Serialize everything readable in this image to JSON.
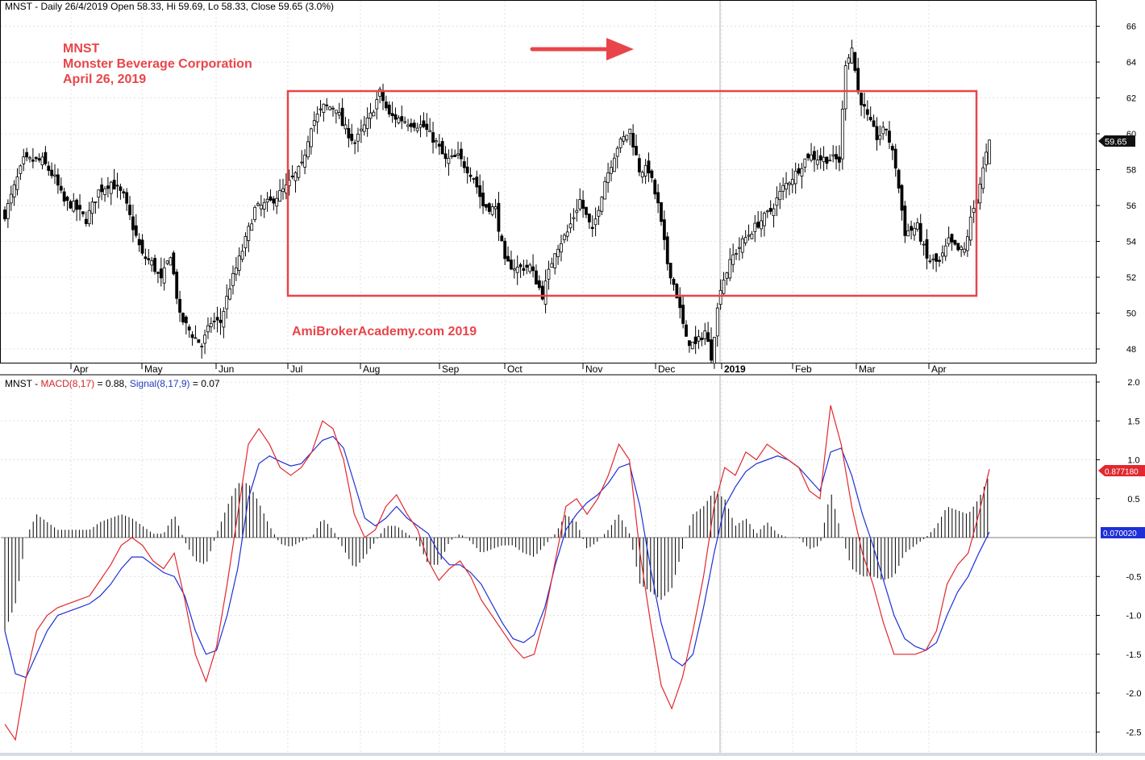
{
  "price_panel": {
    "header": "MNST - Daily 26/4/2019 Open 58.33, Hi 59.69, Lo 58.33, Close 59.65 (3.0%)",
    "annotation_lines": [
      "MNST",
      "Monster Beverage Corporation",
      "April 26, 2019"
    ],
    "watermark": "AmiBrokerAcademy.com  2019",
    "last_price_label": "59.65",
    "colors": {
      "annotation": "#e8454a",
      "box": "#e8454a",
      "arrow": "#e8454a",
      "candle": "#000000"
    }
  },
  "macd_panel": {
    "header": {
      "prefix": "MNST - ",
      "macd_label": "MACD(8,17)",
      "macd_value": " = 0.88, ",
      "signal_label": "Signal(8,17,9)",
      "signal_value": " = 0.07"
    },
    "macd_value_label": "0.877180",
    "signal_value_label": "0.070020",
    "colors": {
      "macd": "#e0282e",
      "signal": "#1f2fd6",
      "histogram": "#000000"
    }
  },
  "chart_data": [
    {
      "type": "candlestick",
      "title": "MNST - Daily 26/4/2019",
      "xlabel": "",
      "ylabel": "",
      "x_tick_labels": [
        "Apr",
        "May",
        "Jun",
        "Jul",
        "Aug",
        "Sep",
        "Oct",
        "Nov",
        "Dec",
        "2019",
        "Feb",
        "Mar",
        "Apr"
      ],
      "y_ticks": [
        48,
        50,
        52,
        54,
        56,
        58,
        60,
        62,
        64,
        66
      ],
      "ylim": [
        47,
        67
      ],
      "grid": true,
      "last": {
        "open": 58.33,
        "high": 59.69,
        "low": 58.33,
        "close": 59.65,
        "change_pct": 3.0
      },
      "close_anchors": [
        [
          0,
          55.5
        ],
        [
          3,
          57
        ],
        [
          6,
          58.5
        ],
        [
          12,
          58.5
        ],
        [
          16,
          57.5
        ],
        [
          19,
          56.2
        ],
        [
          22,
          56
        ],
        [
          26,
          55.2
        ],
        [
          30,
          56.8
        ],
        [
          34,
          57.3
        ],
        [
          38,
          56.5
        ],
        [
          41,
          54.8
        ],
        [
          44,
          53.2
        ],
        [
          47,
          52.8
        ],
        [
          50,
          51.8
        ],
        [
          53,
          53.3
        ],
        [
          56,
          49.8
        ],
        [
          60,
          48.8
        ],
        [
          63,
          48.2
        ],
        [
          66,
          49.5
        ],
        [
          69,
          49.5
        ],
        [
          72,
          51.5
        ],
        [
          76,
          53.5
        ],
        [
          80,
          55.8
        ],
        [
          85,
          56.2
        ],
        [
          90,
          57
        ],
        [
          95,
          58.2
        ],
        [
          98,
          60.5
        ],
        [
          102,
          61.5
        ],
        [
          106,
          61.5
        ],
        [
          108,
          60.5
        ],
        [
          112,
          59.5
        ],
        [
          117,
          61
        ],
        [
          120,
          62.3
        ],
        [
          123,
          61
        ],
        [
          127,
          60.8
        ],
        [
          130,
          60.6
        ],
        [
          134,
          60.4
        ],
        [
          138,
          59.5
        ],
        [
          141,
          58.5
        ],
        [
          145,
          58.7
        ],
        [
          150,
          57.6
        ],
        [
          153,
          56
        ],
        [
          157,
          55.8
        ],
        [
          160,
          52.8
        ],
        [
          164,
          52.5
        ],
        [
          168,
          52.6
        ],
        [
          172,
          51
        ],
        [
          176,
          53.5
        ],
        [
          180,
          54.5
        ],
        [
          184,
          56.3
        ],
        [
          188,
          54.5
        ],
        [
          192,
          57.4
        ],
        [
          196,
          59.3
        ],
        [
          200,
          60.2
        ],
        [
          203,
          58
        ],
        [
          206,
          58
        ],
        [
          209,
          56
        ],
        [
          212,
          52.8
        ],
        [
          215,
          51
        ],
        [
          218,
          48.5
        ],
        [
          221,
          48.2
        ],
        [
          224,
          49
        ],
        [
          226,
          47.6
        ],
        [
          229,
          51.5
        ],
        [
          233,
          53.2
        ],
        [
          237,
          54.2
        ],
        [
          241,
          55
        ],
        [
          245,
          55.7
        ],
        [
          249,
          57
        ],
        [
          253,
          57.8
        ],
        [
          257,
          58.8
        ],
        [
          261,
          58.6
        ],
        [
          265,
          58.6
        ],
        [
          267,
          58.5
        ],
        [
          269,
          64
        ],
        [
          271,
          64.8
        ],
        [
          273,
          62.3
        ],
        [
          276,
          60.9
        ],
        [
          279,
          59.8
        ],
        [
          282,
          60.3
        ],
        [
          285,
          58.2
        ],
        [
          288,
          54.5
        ],
        [
          292,
          54.8
        ],
        [
          295,
          53
        ],
        [
          299,
          52.8
        ],
        [
          302,
          54
        ],
        [
          305,
          53.5
        ],
        [
          307,
          53.5
        ],
        [
          309,
          55.2
        ],
        [
          311,
          56.5
        ],
        [
          313,
          58
        ],
        [
          315,
          59.65
        ]
      ]
    },
    {
      "type": "line",
      "title": "MACD(8,17)",
      "xlabel": "",
      "ylabel": "",
      "y_ticks": [
        -2.5,
        -2.0,
        -1.5,
        -1.0,
        -0.5,
        0.5,
        1.0,
        1.5,
        2.0
      ],
      "ylim": [
        -2.75,
        2.0
      ],
      "grid": true,
      "series": [
        {
          "name": "MACD(8,17)",
          "values": [
            -2.4,
            -2.6,
            -1.8,
            -1.2,
            -1.0,
            -0.9,
            -0.85,
            -0.8,
            -0.75,
            -0.55,
            -0.35,
            -0.1,
            0.0,
            -0.1,
            -0.3,
            -0.4,
            -0.2,
            -0.8,
            -1.5,
            -1.85,
            -1.4,
            -0.6,
            0.3,
            1.2,
            1.4,
            1.2,
            0.9,
            0.8,
            0.9,
            1.1,
            1.5,
            1.4,
            1.0,
            0.3,
            0.0,
            0.1,
            0.4,
            0.55,
            0.3,
            0.1,
            -0.3,
            -0.55,
            -0.4,
            -0.3,
            -0.5,
            -0.8,
            -1.0,
            -1.2,
            -1.4,
            -1.55,
            -1.5,
            -1.0,
            -0.3,
            0.4,
            0.5,
            0.3,
            0.5,
            0.8,
            1.2,
            1.0,
            -0.2,
            -1.1,
            -1.9,
            -2.2,
            -1.8,
            -1.2,
            -0.5,
            0.4,
            0.9,
            0.8,
            1.1,
            1.0,
            1.2,
            1.1,
            1.0,
            0.9,
            0.6,
            0.5,
            1.7,
            1.2,
            0.4,
            -0.2,
            -0.6,
            -1.1,
            -1.5,
            -1.5,
            -1.5,
            -1.45,
            -1.2,
            -0.6,
            -0.35,
            -0.2,
            0.3,
            0.88
          ]
        },
        {
          "name": "Signal(8,17,9)",
          "values": [
            -1.2,
            -1.75,
            -1.8,
            -1.5,
            -1.2,
            -1.0,
            -0.95,
            -0.9,
            -0.85,
            -0.75,
            -0.6,
            -0.4,
            -0.25,
            -0.25,
            -0.35,
            -0.45,
            -0.5,
            -0.75,
            -1.2,
            -1.5,
            -1.45,
            -1.0,
            -0.4,
            0.5,
            0.95,
            1.05,
            0.98,
            0.92,
            0.95,
            1.1,
            1.25,
            1.3,
            1.15,
            0.7,
            0.25,
            0.15,
            0.25,
            0.4,
            0.25,
            0.15,
            0.05,
            -0.2,
            -0.35,
            -0.35,
            -0.45,
            -0.6,
            -0.85,
            -1.1,
            -1.3,
            -1.35,
            -1.25,
            -0.9,
            -0.35,
            0.1,
            0.3,
            0.45,
            0.55,
            0.7,
            0.9,
            0.95,
            0.4,
            -0.4,
            -1.1,
            -1.55,
            -1.65,
            -1.5,
            -0.9,
            -0.2,
            0.4,
            0.65,
            0.85,
            0.95,
            1.0,
            1.05,
            1.0,
            0.9,
            0.75,
            0.6,
            1.1,
            1.15,
            0.8,
            0.3,
            -0.1,
            -0.55,
            -1.0,
            -1.3,
            -1.4,
            -1.45,
            -1.35,
            -1.0,
            -0.7,
            -0.5,
            -0.2,
            0.07
          ]
        }
      ],
      "histogram": {
        "name": "MACD - Signal",
        "values": [
          -1.2,
          -0.85,
          0.0,
          0.3,
          0.2,
          0.1,
          0.1,
          0.1,
          0.1,
          0.2,
          0.25,
          0.3,
          0.25,
          0.15,
          0.05,
          0.05,
          0.3,
          -0.05,
          -0.3,
          -0.35,
          0.05,
          0.4,
          0.7,
          0.7,
          0.45,
          0.15,
          -0.08,
          -0.12,
          -0.05,
          0.0,
          0.25,
          0.1,
          -0.15,
          -0.4,
          -0.25,
          -0.05,
          0.15,
          0.15,
          0.05,
          -0.05,
          -0.35,
          -0.35,
          -0.05,
          0.05,
          -0.05,
          -0.2,
          -0.15,
          -0.1,
          -0.1,
          -0.2,
          -0.25,
          -0.1,
          0.05,
          0.3,
          0.2,
          -0.15,
          -0.05,
          0.1,
          0.3,
          0.05,
          -0.6,
          -0.7,
          -0.8,
          -0.65,
          -0.15,
          0.3,
          0.4,
          0.6,
          0.5,
          0.15,
          0.25,
          0.05,
          0.2,
          0.05,
          0.0,
          0.0,
          -0.15,
          -0.1,
          0.6,
          0.05,
          -0.4,
          -0.5,
          -0.5,
          -0.55,
          -0.5,
          -0.2,
          -0.1,
          0.0,
          0.15,
          0.4,
          0.35,
          0.3,
          0.5,
          0.81
        ]
      }
    }
  ]
}
